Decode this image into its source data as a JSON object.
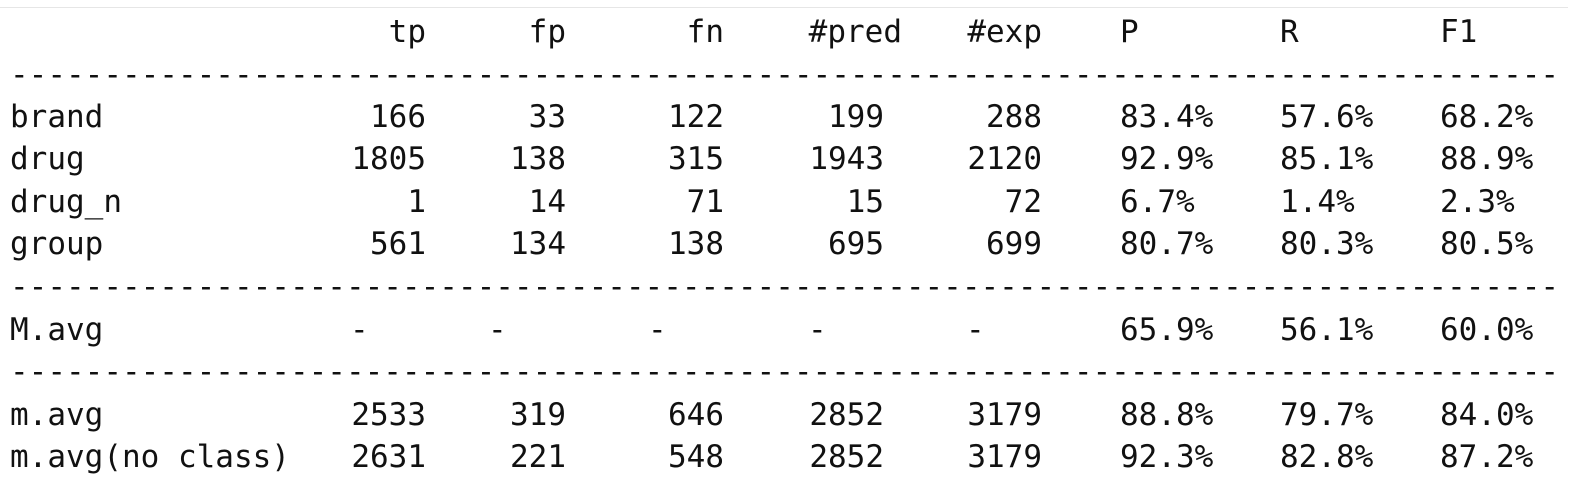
{
  "header": {
    "label": "",
    "tp": "tp",
    "fp": "fp",
    "fn": "fn",
    "pred": "#pred",
    "exp": "#exp",
    "P": "P",
    "R": "R",
    "F1": "F1"
  },
  "separator": "-------------------------------------------------------------------------------------------",
  "class_rows": [
    {
      "label": "brand",
      "tp": "166",
      "fp": "33",
      "fn": "122",
      "pred": "199",
      "exp": "288",
      "P": "83.4%",
      "R": "57.6%",
      "F1": "68.2%"
    },
    {
      "label": "drug",
      "tp": "1805",
      "fp": "138",
      "fn": "315",
      "pred": "1943",
      "exp": "2120",
      "P": "92.9%",
      "R": "85.1%",
      "F1": "88.9%"
    },
    {
      "label": "drug_n",
      "tp": "1",
      "fp": "14",
      "fn": "71",
      "pred": "15",
      "exp": "72",
      "P": "6.7%",
      "R": "1.4%",
      "F1": "2.3%"
    },
    {
      "label": "group",
      "tp": "561",
      "fp": "134",
      "fn": "138",
      "pred": "695",
      "exp": "699",
      "P": "80.7%",
      "R": "80.3%",
      "F1": "80.5%"
    }
  ],
  "macro_row": {
    "label": "M.avg",
    "tp": "-",
    "fp": "-",
    "fn": "-",
    "pred": "-",
    "exp": "-",
    "P": "65.9%",
    "R": "56.1%",
    "F1": "60.0%"
  },
  "micro_rows": [
    {
      "label": "m.avg",
      "tp": "2533",
      "fp": "319",
      "fn": "646",
      "pred": "2852",
      "exp": "3179",
      "P": "88.8%",
      "R": "79.7%",
      "F1": "84.0%"
    },
    {
      "label": "m.avg(no class)",
      "tp": "2631",
      "fp": "221",
      "fn": "548",
      "pred": "2852",
      "exp": "3179",
      "P": "92.3%",
      "R": "82.8%",
      "F1": "87.2%"
    }
  ]
}
